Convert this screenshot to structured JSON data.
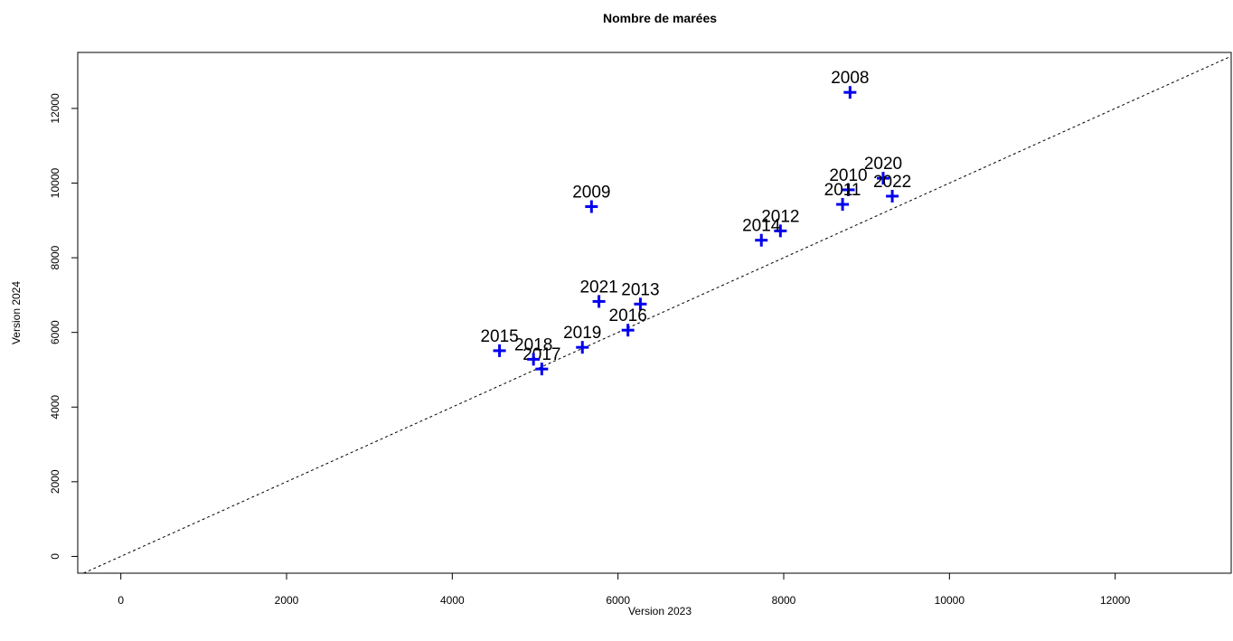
{
  "chart_data": {
    "type": "scatter",
    "title": "Nombre de marées",
    "xlabel": "Version 2023",
    "ylabel": "Version 2024",
    "xlim": [
      -520,
      13400
    ],
    "ylim": [
      -450,
      13500
    ],
    "xticks": [
      0,
      2000,
      4000,
      6000,
      8000,
      10000,
      12000
    ],
    "yticks": [
      0,
      2000,
      4000,
      6000,
      8000,
      10000,
      12000
    ],
    "grid": false,
    "reference_line": {
      "kind": "y = x",
      "style": "dashed",
      "color": "#000000"
    },
    "marker": {
      "shape": "plus",
      "color": "#0000ee"
    },
    "points": [
      {
        "label": "2008",
        "x": 8800,
        "y": 12430
      },
      {
        "label": "2009",
        "x": 5680,
        "y": 9370
      },
      {
        "label": "2010",
        "x": 8780,
        "y": 9820
      },
      {
        "label": "2011",
        "x": 8710,
        "y": 9430
      },
      {
        "label": "2012",
        "x": 7960,
        "y": 8720
      },
      {
        "label": "2013",
        "x": 6270,
        "y": 6760
      },
      {
        "label": "2014",
        "x": 7730,
        "y": 8470
      },
      {
        "label": "2015",
        "x": 4570,
        "y": 5510
      },
      {
        "label": "2016",
        "x": 6120,
        "y": 6060
      },
      {
        "label": "2017",
        "x": 5080,
        "y": 5020
      },
      {
        "label": "2018",
        "x": 4980,
        "y": 5280
      },
      {
        "label": "2019",
        "x": 5570,
        "y": 5600
      },
      {
        "label": "2020",
        "x": 9200,
        "y": 10130
      },
      {
        "label": "2021",
        "x": 5770,
        "y": 6830
      },
      {
        "label": "2022",
        "x": 9310,
        "y": 9650
      }
    ]
  }
}
